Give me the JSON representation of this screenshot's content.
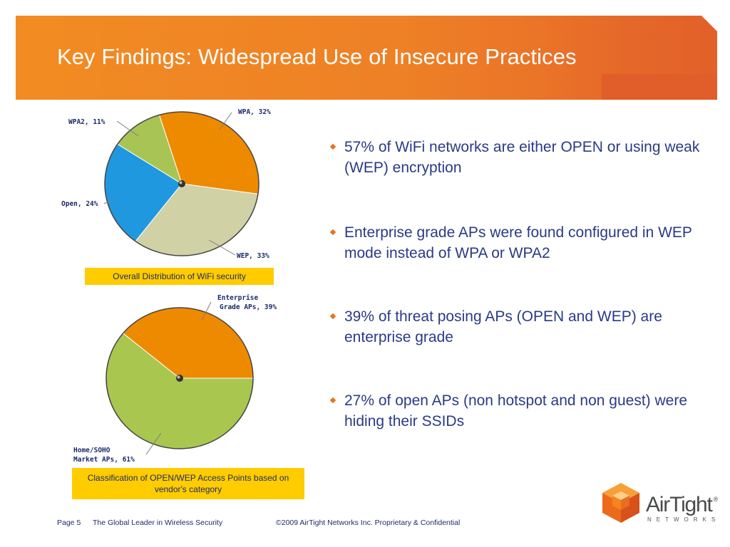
{
  "title": "Key Findings: Widespread Use of Insecure Practices",
  "colors": {
    "header_orange": "#f28c22",
    "text_blue": "#2a3a86",
    "caption_yellow": "#ffcc00",
    "bullet_orange": "#e8731f"
  },
  "chart_data": [
    {
      "type": "pie",
      "title": "",
      "caption": "Overall Distribution of WiFi security",
      "slices": [
        {
          "label": "WPA, 32%",
          "value": 32,
          "color": "#ee8a00"
        },
        {
          "label": "WEP, 33%",
          "value": 33,
          "color": "#d1d1a6"
        },
        {
          "label": "Open, 24%",
          "value": 24,
          "color": "#1f98e0"
        },
        {
          "label": "WPA2, 11%",
          "value": 11,
          "color": "#a8c454"
        }
      ]
    },
    {
      "type": "pie",
      "title": "",
      "caption": "Classification of OPEN/WEP Access Points based on vendor's category",
      "slices": [
        {
          "label_lines": [
            "Enterprise",
            "Grade APs, 39%"
          ],
          "value": 39,
          "color": "#ee8a00"
        },
        {
          "label_lines": [
            "Home/SOHO",
            "Market APs, 61%"
          ],
          "value": 61,
          "color": "#a9c64f"
        }
      ]
    }
  ],
  "bullets": [
    "57% of WiFi networks are either OPEN or using weak (WEP) encryption",
    "Enterprise grade APs were found configured in WEP mode instead of WPA or WPA2",
    "39% of threat posing APs (OPEN and WEP) are enterprise grade",
    "27% of open APs (non hotspot and non guest) were hiding their SSIDs"
  ],
  "footer": {
    "page": "Page 5",
    "tagline": "The Global Leader in  Wireless Security",
    "copyright": "©2009 AirTight Networks Inc. Proprietary & Confidential"
  },
  "logo": {
    "name": "AirTight",
    "registered": "®",
    "sub": "NETWORKS"
  }
}
